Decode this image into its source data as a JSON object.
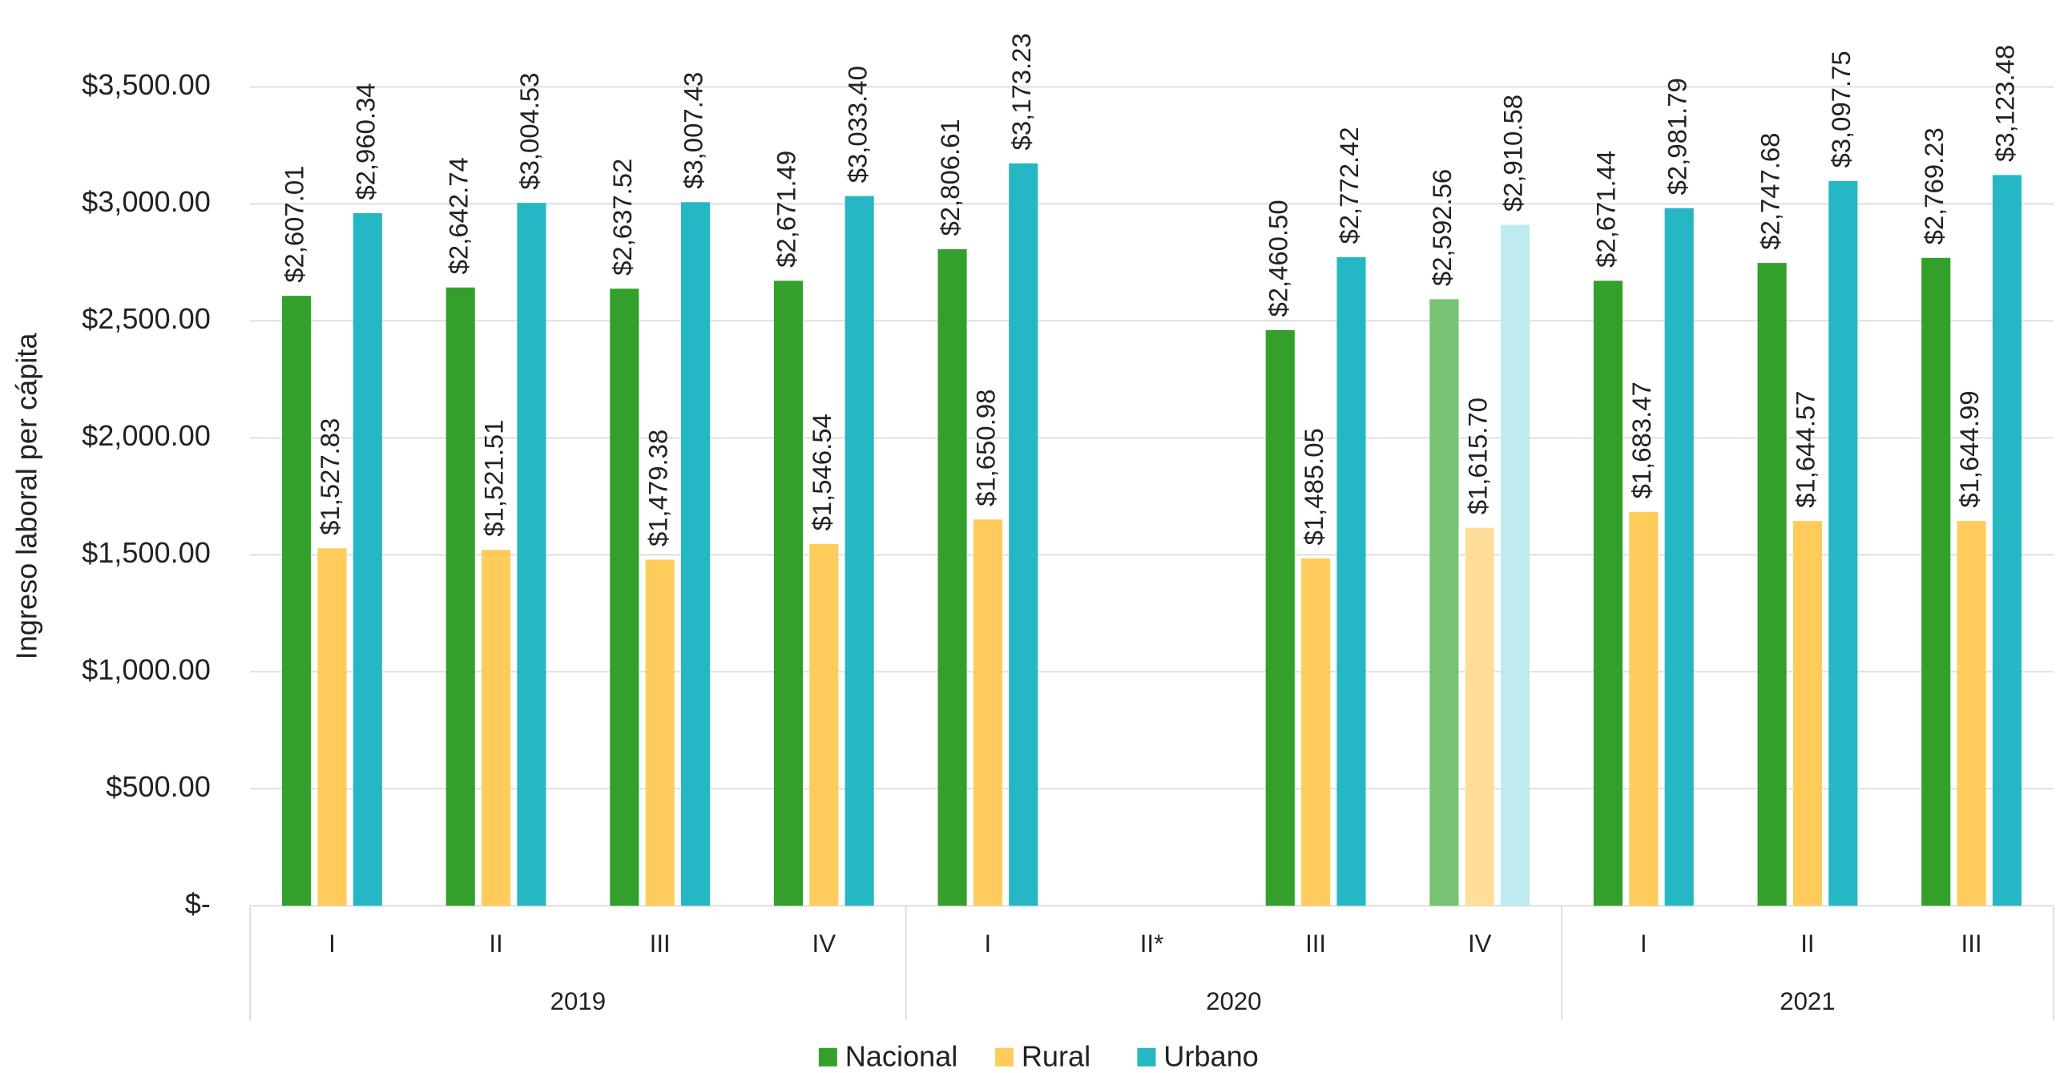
{
  "chart_data": {
    "type": "bar",
    "y_label": "Ingreso laboral per cápita",
    "categories": [
      "I",
      "II",
      "III",
      "IV",
      "I",
      "II*",
      "III",
      "IV",
      "I",
      "II",
      "III"
    ],
    "groups": [
      {
        "label": "2019",
        "count": 4
      },
      {
        "label": "2020",
        "count": 4
      },
      {
        "label": "2021",
        "count": 3
      }
    ],
    "series": [
      {
        "name": "Nacional",
        "color": "#34a02c",
        "colors": [
          "#34a02c",
          "#34a02c",
          "#34a02c",
          "#34a02c",
          "#34a02c",
          "#34a02c",
          "#34a02c",
          "#76c473",
          "#34a02c",
          "#34a02c",
          "#34a02c"
        ],
        "values": [
          2607.01,
          2642.74,
          2637.52,
          2671.49,
          2806.61,
          null,
          2460.5,
          2592.56,
          2671.44,
          2747.68,
          2769.23
        ],
        "value_labels": [
          "$2,607.01",
          "$2,642.74",
          "$2,637.52",
          "$2,671.49",
          "$2,806.61",
          null,
          "$2,460.50",
          "$2,592.56",
          "$2,671.44",
          "$2,747.68",
          "$2,769.23"
        ]
      },
      {
        "name": "Rural",
        "color": "#ffcc5c",
        "colors": [
          "#ffcc5c",
          "#ffcc5c",
          "#ffcc5c",
          "#ffcc5c",
          "#ffcc5c",
          "#ffcc5c",
          "#ffcc5c",
          "#ffdf98",
          "#ffcc5c",
          "#ffcc5c",
          "#ffcc5c"
        ],
        "values": [
          1527.83,
          1521.51,
          1479.38,
          1546.54,
          1650.98,
          null,
          1485.05,
          1615.7,
          1683.47,
          1644.57,
          1644.99
        ],
        "value_labels": [
          "$1,527.83",
          "$1,521.51",
          "$1,479.38",
          "$1,546.54",
          "$1,650.98",
          null,
          "$1,485.05",
          "$1,615.70",
          "$1,683.47",
          "$1,644.57",
          "$1,644.99"
        ]
      },
      {
        "name": "Urbano",
        "color": "#25b7c3",
        "colors": [
          "#25b7c3",
          "#25b7c3",
          "#25b7c3",
          "#25b7c3",
          "#25b7c3",
          "#25b7c3",
          "#25b7c3",
          "#bdebef",
          "#25b7c3",
          "#25b7c3",
          "#25b7c3"
        ],
        "values": [
          2960.34,
          3004.53,
          3007.43,
          3033.4,
          3173.23,
          null,
          2772.42,
          2910.58,
          2981.79,
          3097.75,
          3123.48
        ],
        "value_labels": [
          "$2,960.34",
          "$3,004.53",
          "$3,007.43",
          "$3,033.40",
          "$3,173.23",
          null,
          "$2,772.42",
          "$2,910.58",
          "$2,981.79",
          "$3,097.75",
          "$3,123.48"
        ]
      }
    ],
    "ylim": [
      0,
      3500
    ],
    "yticks": [
      {
        "value": 0,
        "label": "$-"
      },
      {
        "value": 500,
        "label": "$500.00"
      },
      {
        "value": 1000,
        "label": "$1,000.00"
      },
      {
        "value": 1500,
        "label": "$1,500.00"
      },
      {
        "value": 2000,
        "label": "$2,000.00"
      },
      {
        "value": 2500,
        "label": "$2,500.00"
      },
      {
        "value": 3000,
        "label": "$3,000.00"
      },
      {
        "value": 3500,
        "label": "$3,500.00"
      }
    ],
    "grid": true,
    "legend": "bottom"
  }
}
